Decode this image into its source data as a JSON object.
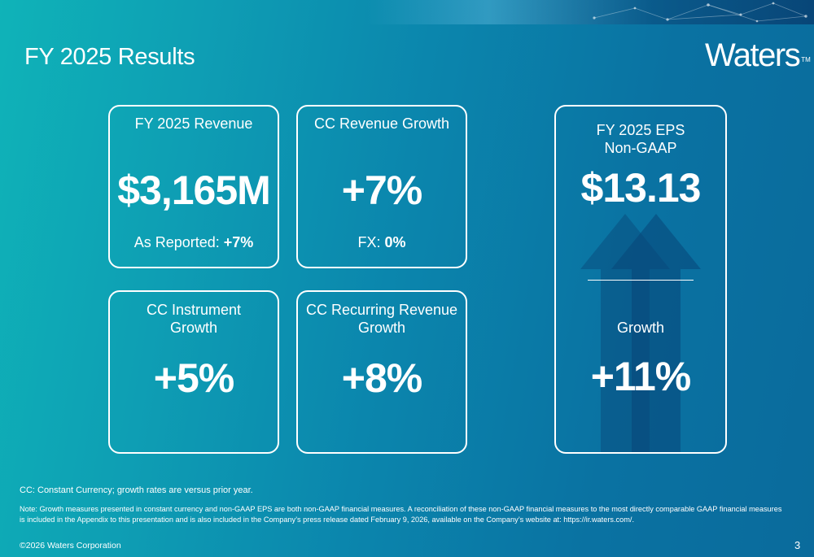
{
  "slide": {
    "title": "FY 2025 Results",
    "logo_text": "Waters",
    "logo_tm": "TM",
    "page_number": "3"
  },
  "cards": {
    "revenue": {
      "label": "FY 2025 Revenue",
      "value": "$3,165M",
      "sub_label": "As Reported:",
      "sub_value": "+7%"
    },
    "cc_revenue_growth": {
      "label": "CC Revenue Growth",
      "value": "+7%",
      "sub_label": "FX:",
      "sub_value": "0%"
    },
    "cc_instrument_growth": {
      "label": "CC Instrument\nGrowth",
      "value": "+5%"
    },
    "cc_recurring_growth": {
      "label": "CC Recurring Revenue\nGrowth",
      "value": "+8%"
    },
    "eps": {
      "label": "FY 2025 EPS\nNon-GAAP",
      "value": "$13.13",
      "growth_label": "Growth",
      "growth_value": "+11%"
    }
  },
  "footer": {
    "cc_note": "CC: Constant Currency; growth rates are versus prior year.",
    "note": "Note: Growth measures presented in constant currency and non-GAAP EPS are both non-GAAP financial measures. A reconciliation of these non-GAAP financial measures to the most directly comparable GAAP financial measures is included in the Appendix to this presentation and is also included in the Company’s press release dated February 9, 2026, available on the Company’s website at: https://ir.waters.com/.",
    "copyright": "©2026 Waters Corporation"
  },
  "colors": {
    "background_start": "#0fb3b8",
    "background_end": "#0a6b9c",
    "card_border": "#ffffff",
    "arrow_fill": "#0a5a8c"
  }
}
